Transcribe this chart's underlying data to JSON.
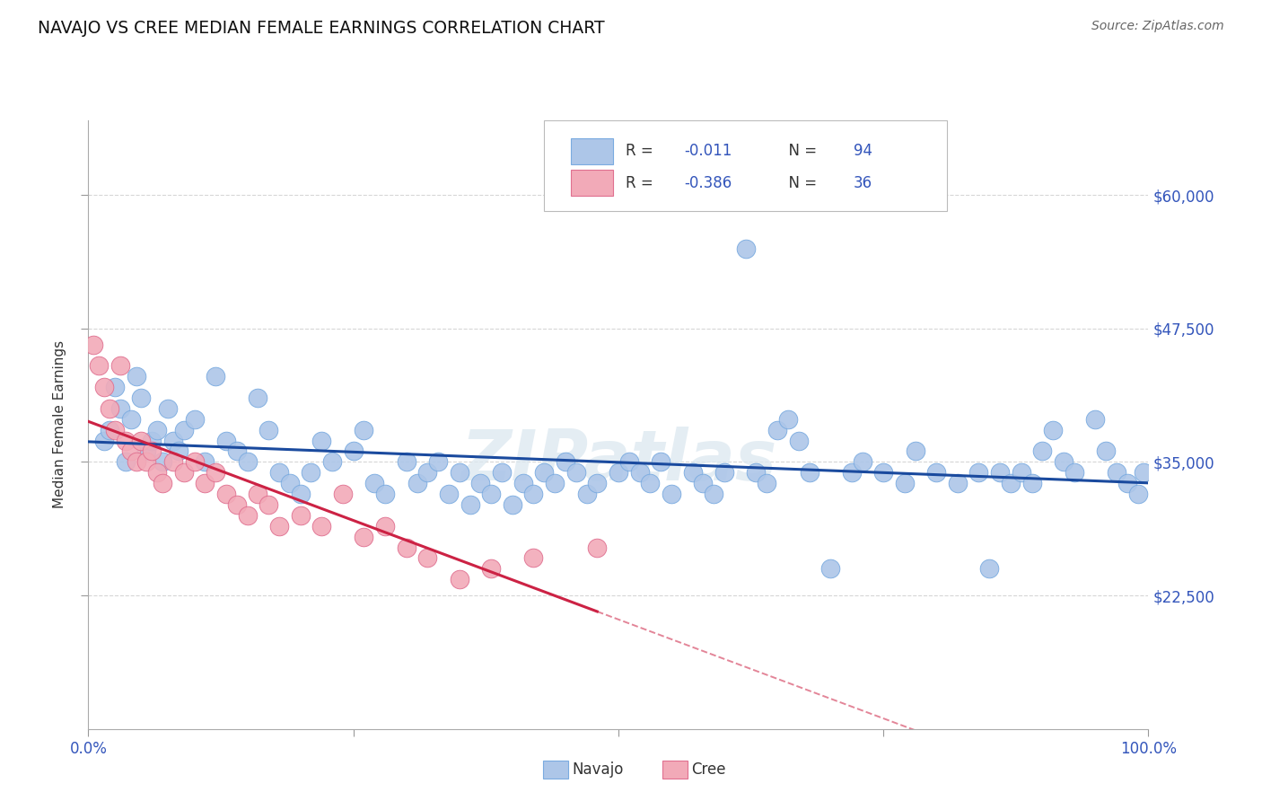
{
  "title": "NAVAJO VS CREE MEDIAN FEMALE EARNINGS CORRELATION CHART",
  "source": "Source: ZipAtlas.com",
  "ylabel": "Median Female Earnings",
  "xlim": [
    0,
    100
  ],
  "ylim": [
    10000,
    67000
  ],
  "ytick_vals": [
    22500,
    35000,
    47500,
    60000
  ],
  "ytick_labels": [
    "$22,500",
    "$35,000",
    "$47,500",
    "$60,000"
  ],
  "navajo_R": "-0.011",
  "navajo_N": "94",
  "cree_R": "-0.386",
  "cree_N": "36",
  "navajo_color": "#adc6e8",
  "navajo_edge": "#7aabe0",
  "cree_color": "#f2aab8",
  "cree_edge": "#e07090",
  "navajo_line_color": "#1a4a9e",
  "cree_line_color": "#cc2244",
  "watermark": "ZIPatlas",
  "bg_color": "#ffffff",
  "grid_color": "#cccccc",
  "axis_label_color": "#3355bb",
  "text_color": "#333333",
  "source_color": "#666666"
}
